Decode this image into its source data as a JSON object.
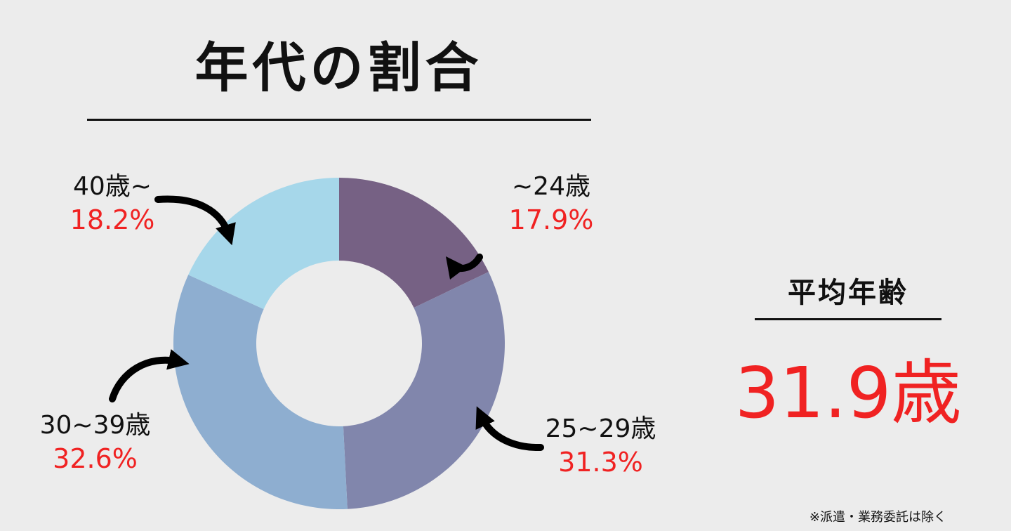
{
  "title": "年代の割合",
  "chart_data": {
    "type": "pie",
    "donut": true,
    "title": "年代の割合",
    "categories": [
      "~24歳",
      "25~29歳",
      "30~39歳",
      "40歳~"
    ],
    "labels": [
      "17.9%",
      "31.3%",
      "32.6%",
      "18.2%"
    ],
    "values": [
      17.9,
      31.3,
      32.6,
      18.2
    ],
    "colors": [
      "#766184",
      "#8186ac",
      "#8eaed0",
      "#a6d7ea"
    ]
  },
  "average": {
    "title": "平均年齢",
    "value": "31.9歳"
  },
  "note": "※派遣・業務委託は除く",
  "colors": {
    "accent": "#f02222",
    "text": "#111111",
    "background": "#ececec"
  }
}
